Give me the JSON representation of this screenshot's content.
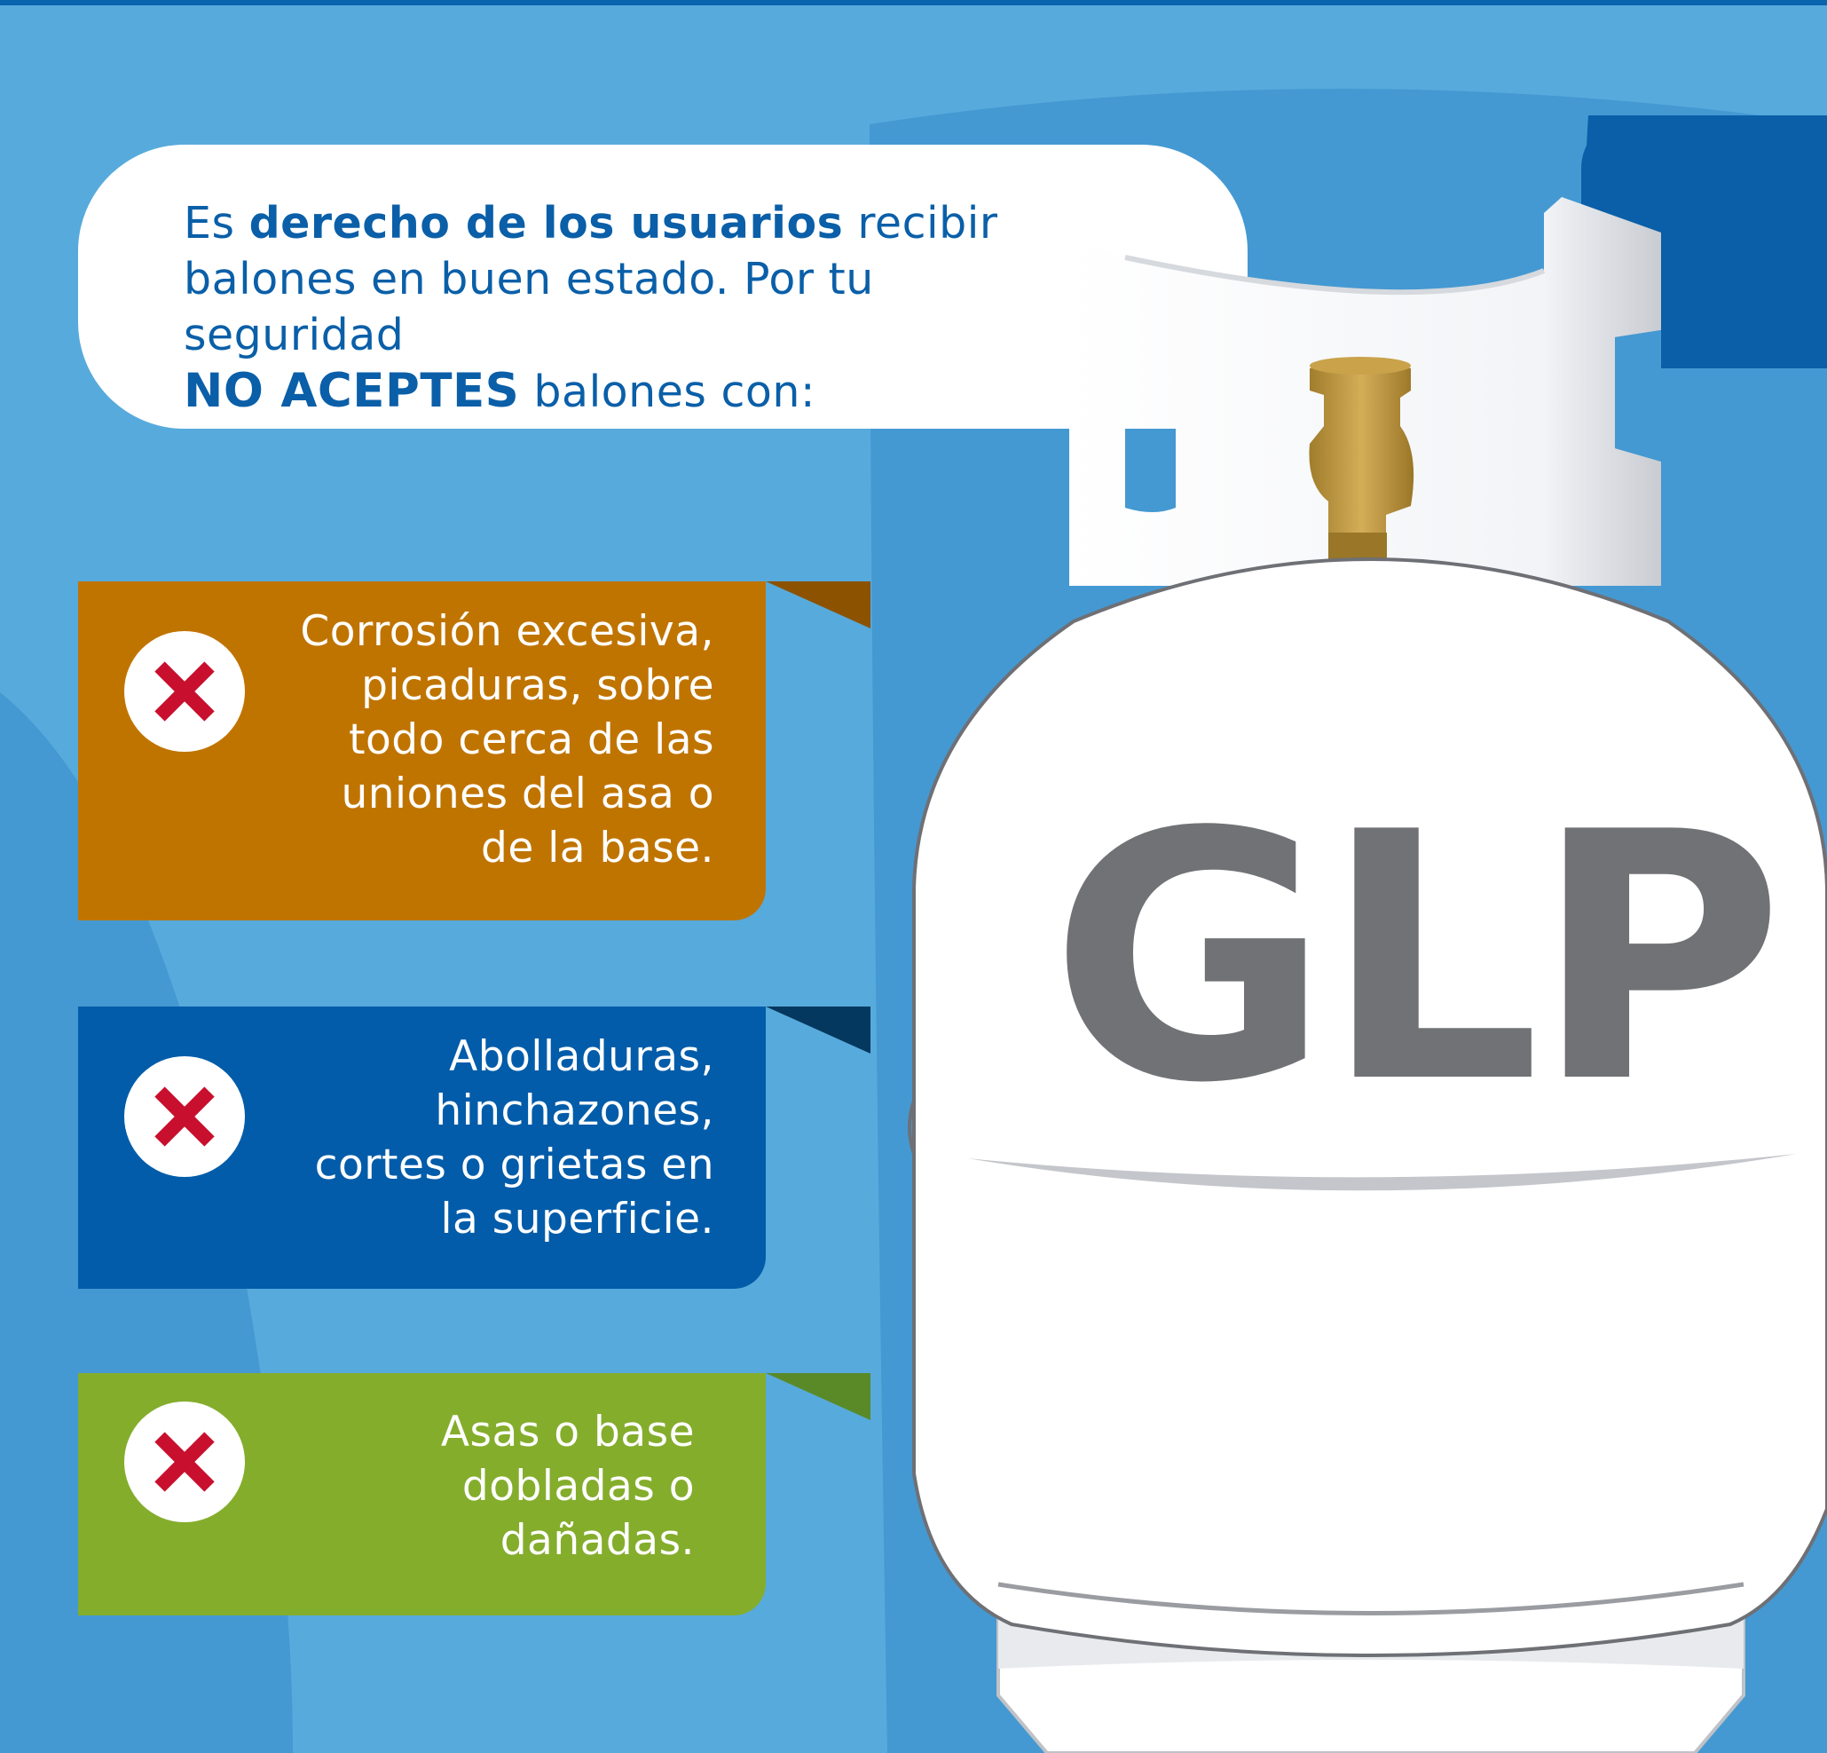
{
  "intro": {
    "line1_pre": "Es ",
    "line1_bold": "derecho de los usuarios",
    "line1_post": " recibir",
    "line2": "balones en buen estado. Por tu seguridad",
    "line3_bold": "NO ACEPTES",
    "line3_post": " balones con:"
  },
  "cards": [
    {
      "icon": "x-icon",
      "color": "#c07400",
      "tab_color": "#8c5200",
      "lines": [
        "Corrosión excesiva,",
        "picaduras, sobre",
        "todo cerca de las",
        "uniones del asa o",
        "de la base."
      ]
    },
    {
      "icon": "x-icon",
      "color": "#025ca9",
      "tab_color": "#05385f",
      "lines": [
        "Abolladuras,",
        "hinchazones,",
        "cortes o grietas en",
        "la superficie."
      ]
    },
    {
      "icon": "x-icon",
      "color": "#84ad2c",
      "tab_color": "#5a8a28",
      "lines": [
        "Asas o base",
        "dobladas o",
        "dañadas."
      ]
    }
  ],
  "tank": {
    "label": "GLP",
    "label_color": "#717276",
    "valve_color": "#c9a24a"
  },
  "colors": {
    "background": "#57aadc",
    "dark_blue": "#0a63ad",
    "x_red": "#c8102e"
  }
}
